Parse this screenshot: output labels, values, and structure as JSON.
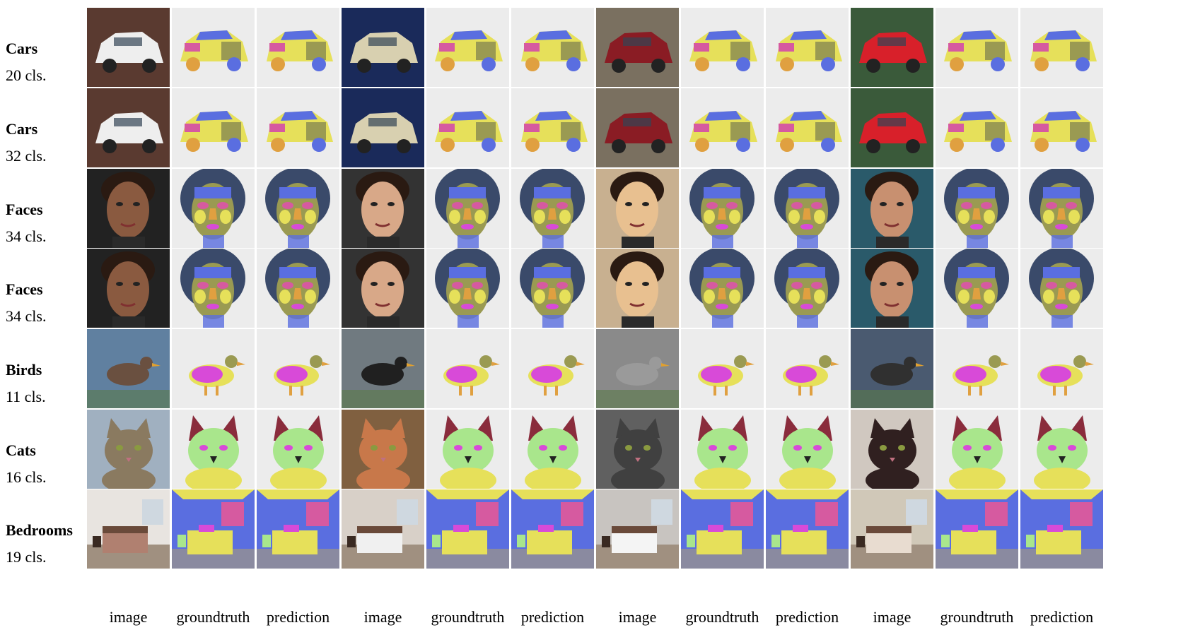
{
  "rows": [
    {
      "category": "Cars",
      "classes": "20 cls.",
      "kind": "car"
    },
    {
      "category": "Cars",
      "classes": "32 cls.",
      "kind": "car"
    },
    {
      "category": "Faces",
      "classes": "34 cls.",
      "kind": "face"
    },
    {
      "category": "Faces",
      "classes": "34 cls.",
      "kind": "face"
    },
    {
      "category": "Birds",
      "classes": "11 cls.",
      "kind": "bird"
    },
    {
      "category": "Cats",
      "classes": "16 cls.",
      "kind": "cat"
    },
    {
      "category": "Bedrooms",
      "classes": "19 cls.",
      "kind": "bedroom"
    }
  ],
  "column_labels": [
    "image",
    "groundtruth",
    "prediction",
    "image",
    "groundtruth",
    "prediction",
    "image",
    "groundtruth",
    "prediction",
    "image",
    "groundtruth",
    "prediction"
  ],
  "colors": {
    "seg_blue": "#5a6ee0",
    "seg_yellow": "#e6e05a",
    "seg_pink": "#d65aa0",
    "seg_green": "#a9e68c",
    "seg_olive": "#9a9a52",
    "seg_orange": "#e0a040",
    "seg_magenta": "#d84ad8",
    "seg_dark": "#3a4a6a",
    "seg_maroon": "#8a2c3c",
    "seg_bg": "#ececec"
  }
}
